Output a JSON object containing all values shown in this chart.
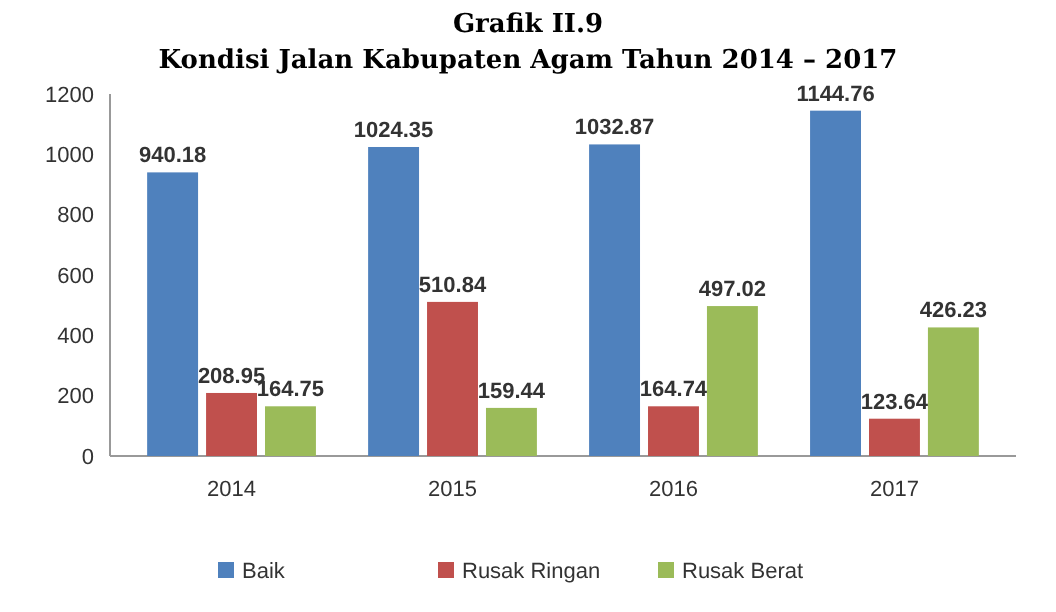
{
  "chart_data": {
    "type": "bar",
    "title": "Grafik II.9",
    "subtitle": "Kondisi Jalan Kabupaten Agam Tahun 2014 – 2017",
    "categories": [
      "2014",
      "2015",
      "2016",
      "2017"
    ],
    "series": [
      {
        "name": "Baik",
        "color": "#4f81bd",
        "values": [
          940.18,
          1024.35,
          1032.87,
          1144.76
        ]
      },
      {
        "name": "Rusak Ringan",
        "color": "#c0504d",
        "values": [
          208.95,
          510.84,
          164.74,
          123.64
        ]
      },
      {
        "name": "Rusak Berat",
        "color": "#9bbb59",
        "values": [
          164.75,
          159.44,
          497.02,
          426.23
        ]
      }
    ],
    "ylim": [
      0,
      1200
    ],
    "yticks": [
      0,
      200,
      400,
      600,
      800,
      1000,
      1200
    ],
    "data_labels": true,
    "legend": "bottom"
  }
}
